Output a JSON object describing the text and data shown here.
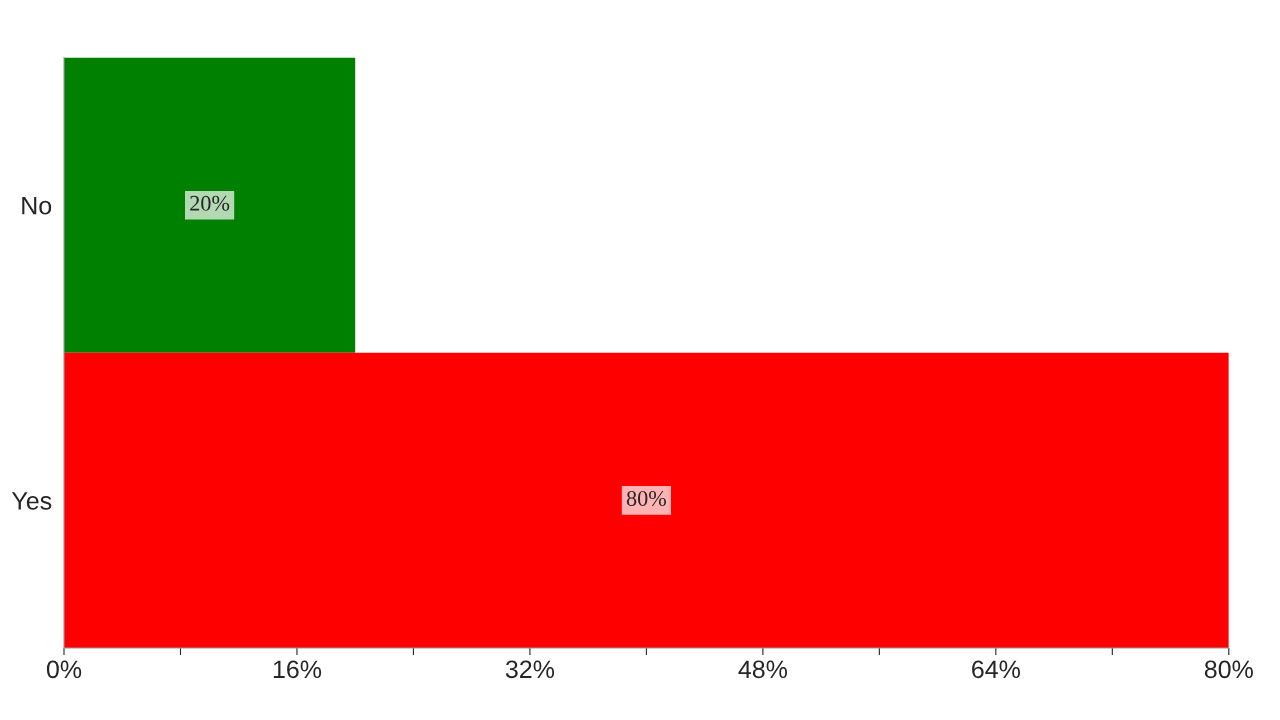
{
  "chart_data": {
    "type": "bar",
    "orientation": "horizontal",
    "categories": [
      "No",
      "Yes"
    ],
    "values": [
      20,
      80
    ],
    "colors": [
      "#008000",
      "#ff0000"
    ],
    "value_labels": [
      "20%",
      "80%"
    ],
    "xlim": [
      0,
      80
    ],
    "xticks": [
      {
        "value": 0,
        "label": "0%"
      },
      {
        "value": 8,
        "label": null
      },
      {
        "value": 16,
        "label": "16%"
      },
      {
        "value": 24,
        "label": null
      },
      {
        "value": 32,
        "label": "32%"
      },
      {
        "value": 40,
        "label": null
      },
      {
        "value": 48,
        "label": "48%"
      },
      {
        "value": 56,
        "label": null
      },
      {
        "value": 64,
        "label": "64%"
      },
      {
        "value": 72,
        "label": null
      },
      {
        "value": 80,
        "label": "80%"
      }
    ],
    "grid": false,
    "legend": false
  }
}
